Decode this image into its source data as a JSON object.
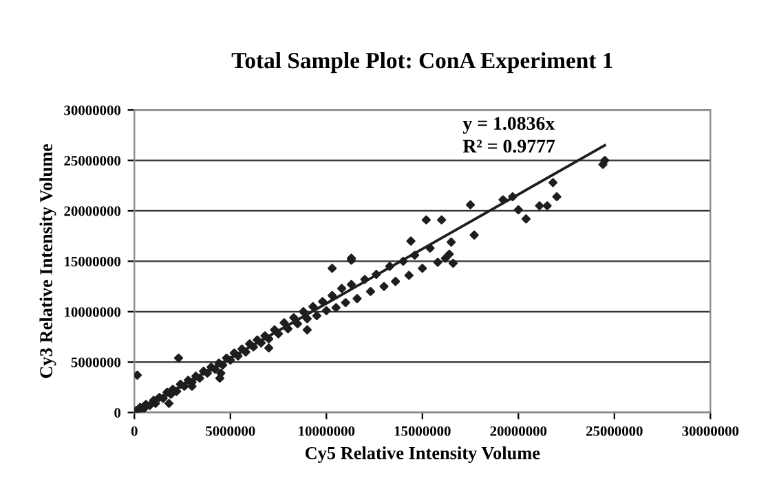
{
  "chart_data": {
    "type": "scatter",
    "title": "Total Sample Plot: ConA Experiment 1",
    "xlabel": "Cy5 Relative Intensity Volume",
    "ylabel": "Cy3 Relative Intensity Volume",
    "series": [
      {
        "color": "#1e1e1e",
        "marker": "diamond",
        "x": [
          100000,
          200000,
          300000,
          500000,
          600000,
          800000,
          1000000,
          1100000,
          1300000,
          1500000,
          1700000,
          1900000,
          2000000,
          2200000,
          2400000,
          2600000,
          2800000,
          3000000,
          3200000,
          3400000,
          3600000,
          3800000,
          4000000,
          4200000,
          4400000,
          4600000,
          4800000,
          5000000,
          5200000,
          5400000,
          5600000,
          5800000,
          6000000,
          6200000,
          6400000,
          6600000,
          6800000,
          7000000,
          7300000,
          7500000,
          7800000,
          8000000,
          8300000,
          8500000,
          8800000,
          9000000,
          9300000,
          9500000,
          9800000,
          10000000,
          10300000,
          10500000,
          10800000,
          11000000,
          11300000,
          11600000,
          12000000,
          12300000,
          12600000,
          13000000,
          13300000,
          13600000,
          14000000,
          14300000,
          14600000,
          15000000,
          15400000,
          15800000,
          16200000,
          16600000,
          7000000,
          9000000,
          4500000,
          3000000,
          14400000,
          17700000,
          10300000,
          11300000,
          2300000,
          150000,
          4450000,
          1800000,
          16400000,
          24500000,
          24400000,
          21800000,
          22000000,
          21500000,
          21100000,
          20400000,
          20000000,
          19700000,
          19200000,
          17500000,
          15200000,
          16000000,
          16500000,
          11300000
        ],
        "values": [
          200000,
          100000,
          500000,
          400000,
          800000,
          700000,
          1200000,
          900000,
          1500000,
          1400000,
          2000000,
          1800000,
          2300000,
          2100000,
          2800000,
          2600000,
          3200000,
          3000000,
          3600000,
          3400000,
          4100000,
          3900000,
          4500000,
          4300000,
          4900000,
          4700000,
          5400000,
          5200000,
          5900000,
          5600000,
          6300000,
          6000000,
          6800000,
          6500000,
          7200000,
          6900000,
          7600000,
          7300000,
          8200000,
          7800000,
          8900000,
          8300000,
          9400000,
          8800000,
          10000000,
          9300000,
          10500000,
          9600000,
          11000000,
          10100000,
          11600000,
          10400000,
          12300000,
          10900000,
          12700000,
          11300000,
          13200000,
          12000000,
          13700000,
          12500000,
          14500000,
          13000000,
          15000000,
          13600000,
          15600000,
          14300000,
          16300000,
          14900000,
          15300000,
          14800000,
          6400000,
          8200000,
          3900000,
          2600000,
          17000000,
          17600000,
          14300000,
          15100000,
          5400000,
          3700000,
          3400000,
          900000,
          15700000,
          25000000,
          24600000,
          22800000,
          21400000,
          20500000,
          20500000,
          19200000,
          20100000,
          21400000,
          21100000,
          20600000,
          19100000,
          19100000,
          16900000,
          15300000
        ]
      },
      {
        "type": "line",
        "color": "#1e1e1e",
        "x": [
          0,
          24500000
        ],
        "values": [
          0,
          26500000
        ]
      }
    ],
    "xlim": [
      0,
      30000000
    ],
    "ylim": [
      0,
      30000000
    ],
    "xticks": [
      0,
      5000000,
      10000000,
      15000000,
      20000000,
      25000000,
      30000000
    ],
    "yticks": [
      0,
      5000000,
      10000000,
      15000000,
      20000000,
      25000000,
      30000000
    ],
    "grid": "y",
    "legend": false,
    "annotations": [
      "y = 1.0836x",
      "R² = 0.9777"
    ]
  }
}
